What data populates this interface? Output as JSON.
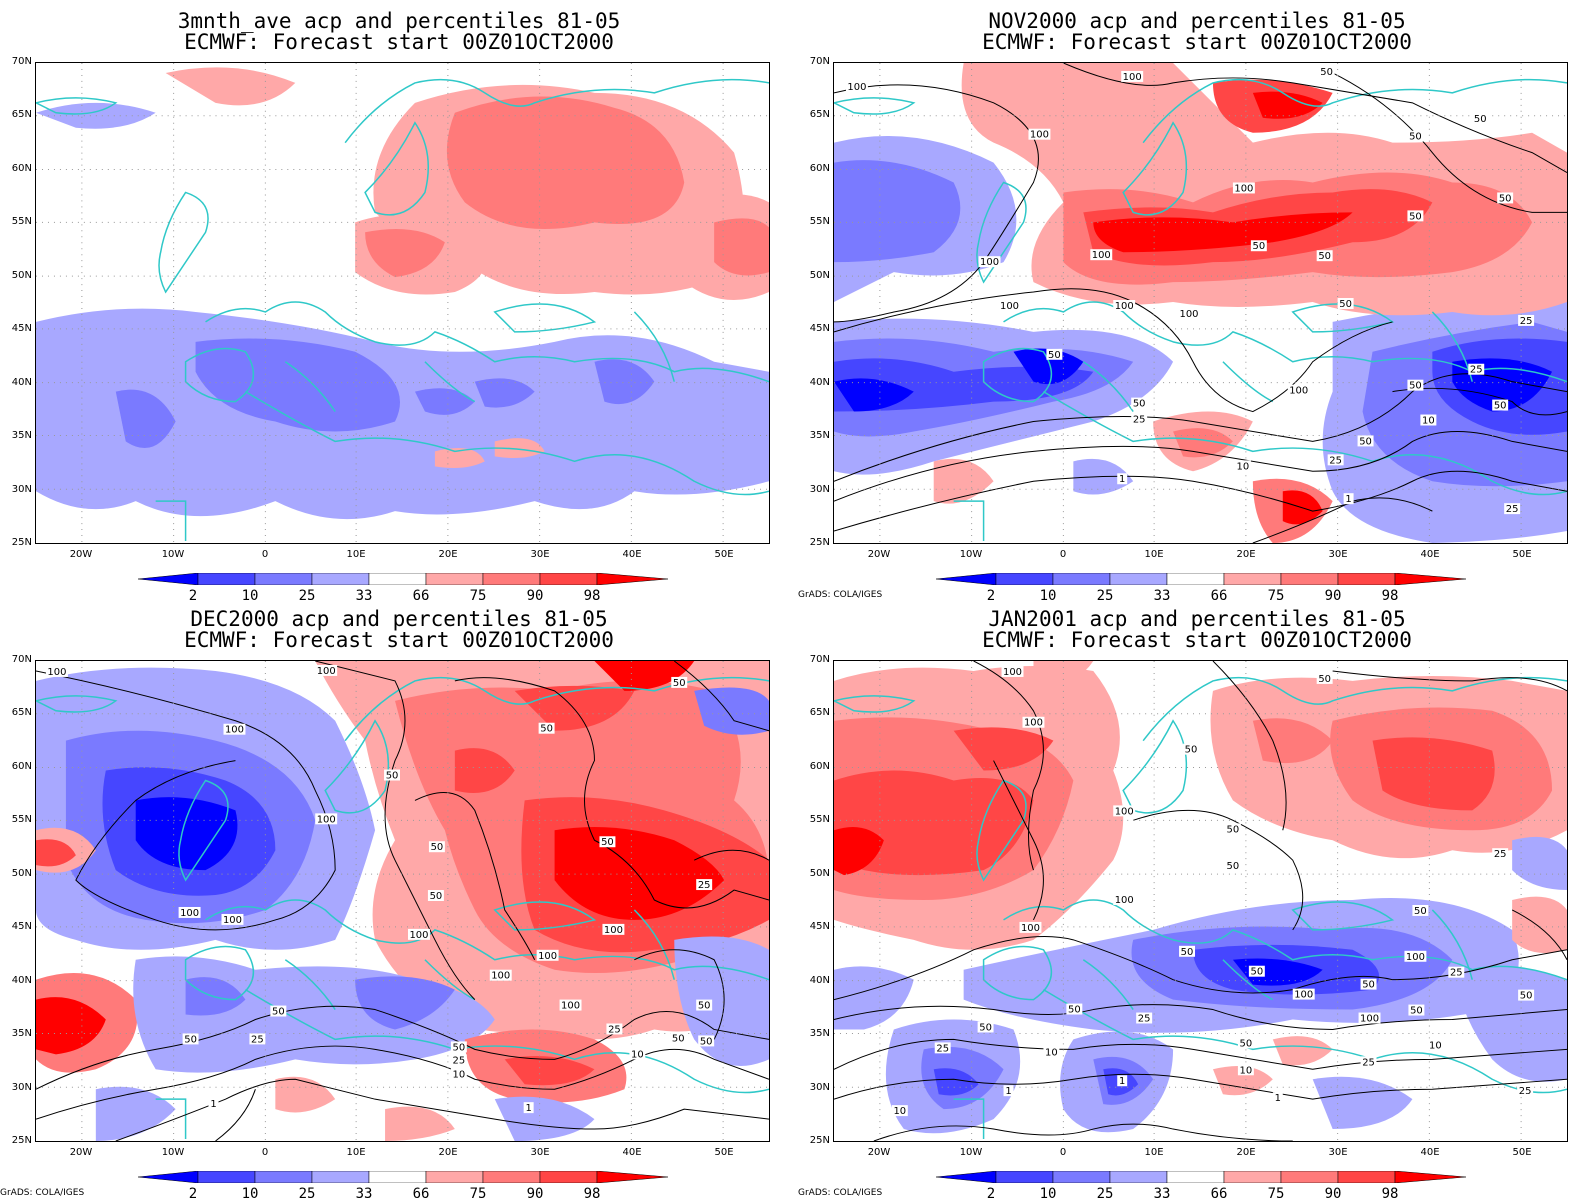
{
  "panels": [
    {
      "title": "3mnth_ave acp and percentiles 81-05",
      "subtitle": "ECMWF: Forecast start 00Z01OCT2000",
      "credit": "",
      "contours": false
    },
    {
      "title": "NOV2000 acp and percentiles 81-05",
      "subtitle": "ECMWF: Forecast start 00Z01OCT2000",
      "credit": "GrADS: COLA/IGES",
      "contours": true
    },
    {
      "title": "DEC2000 acp and percentiles 81-05",
      "subtitle": "ECMWF: Forecast start 00Z01OCT2000",
      "credit": "GrADS: COLA/IGES",
      "contours": true
    },
    {
      "title": "JAN2001 acp and percentiles 81-05",
      "subtitle": "ECMWF: Forecast start 00Z01OCT2000",
      "credit": "GrADS: COLA/IGES",
      "contours": true
    }
  ],
  "axes": {
    "lat_labels": [
      "70N",
      "65N",
      "60N",
      "55N",
      "50N",
      "45N",
      "40N",
      "35N",
      "30N",
      "25N"
    ],
    "lon_labels": [
      "20W",
      "10W",
      "0",
      "10E",
      "20E",
      "30E",
      "40E",
      "50E"
    ],
    "lat_range": [
      25,
      70
    ],
    "lon_range": [
      -25,
      55
    ]
  },
  "colorbar": {
    "levels": [
      "2",
      "10",
      "25",
      "33",
      "66",
      "75",
      "90",
      "98"
    ],
    "colors": {
      "blue_deep": "#0000ff",
      "blue_mid": "#4646ff",
      "blue_light": "#7a7aff",
      "blue_pale": "#a8a8ff",
      "white": "#ffffff",
      "red_pale": "#ffa8a8",
      "red_light": "#ff7a7a",
      "red_mid": "#ff4646",
      "red_deep": "#ff0000"
    }
  },
  "contour_labels": [
    "1",
    "10",
    "25",
    "50",
    "100"
  ],
  "map_colors": {
    "coast": "#2fc8c8",
    "contour": "#000000",
    "grid": "#999999"
  }
}
